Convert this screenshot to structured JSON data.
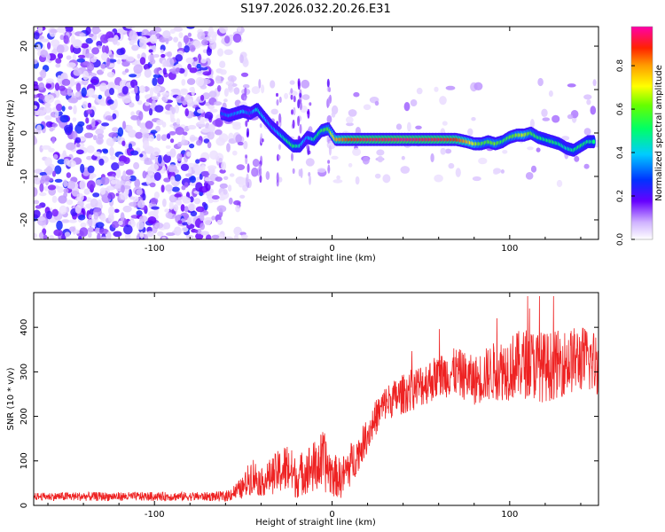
{
  "figure_title": "S197.2026.032.20.26.E31",
  "chart_data": [
    {
      "type": "heatmap",
      "title": "S197.2026.032.20.26.E31",
      "xlabel": "Height of straight line (km)",
      "ylabel": "Frequency (Hz)",
      "xlim": [
        -168,
        150
      ],
      "ylim": [
        -24.5,
        24.5
      ],
      "x_ticks": [
        -100,
        0,
        100
      ],
      "y_ticks": [
        -20,
        -10,
        0,
        10,
        20
      ],
      "x_tick_labels": [
        "-100",
        "0",
        "100"
      ],
      "y_tick_labels": [
        "-20",
        "-10",
        "0",
        "10",
        "20"
      ],
      "colorbar": {
        "label": "Normalized spectral amplitude",
        "range": [
          0,
          0.98
        ],
        "ticks": [
          0.0,
          0.2,
          0.4,
          0.6,
          0.8
        ],
        "tick_labels": [
          "0.0",
          "0.2",
          "0.4",
          "0.6",
          "0.8"
        ],
        "colormap": "rainbow"
      },
      "ridge": {
        "x": [
          -62,
          -58,
          -54,
          -50,
          -46,
          -42,
          -38,
          -34,
          -30,
          -26,
          -22,
          -18,
          -14,
          -10,
          -6,
          -2,
          2,
          10,
          20,
          30,
          40,
          50,
          60,
          70,
          76,
          80,
          84,
          88,
          92,
          96,
          100,
          104,
          108,
          112,
          116,
          120,
          124,
          128,
          132,
          136,
          140,
          144,
          148
        ],
        "y": [
          4.5,
          4,
          4.5,
          5,
          4.5,
          5.5,
          3.5,
          1.5,
          0,
          -1.5,
          -3,
          -3,
          -1,
          -1.5,
          0.5,
          1,
          -1.5,
          -1.5,
          -1.5,
          -1.5,
          -1.5,
          -1.5,
          -1.5,
          -1.5,
          -2,
          -2.5,
          -2.5,
          -2,
          -2.5,
          -2,
          -1,
          -0.5,
          -0.5,
          0,
          -1,
          -1.5,
          -2,
          -2.5,
          -3.5,
          -4,
          -3,
          -2,
          -2
        ],
        "amplitude": [
          0.3,
          0.35,
          0.35,
          0.4,
          0.3,
          0.45,
          0.4,
          0.35,
          0.4,
          0.5,
          0.55,
          0.45,
          0.35,
          0.5,
          0.55,
          0.6,
          0.8,
          0.9,
          0.95,
          0.95,
          0.98,
          0.95,
          0.95,
          0.9,
          0.8,
          0.7,
          0.6,
          0.6,
          0.65,
          0.55,
          0.6,
          0.65,
          0.7,
          0.6,
          0.55,
          0.5,
          0.55,
          0.5,
          0.45,
          0.5,
          0.55,
          0.5,
          0.5
        ]
      },
      "noise": {
        "description_values": "scattered low-amplitude speckle",
        "dense_region_x": [
          -168,
          -68
        ],
        "sparse_region_x": [
          -68,
          150
        ],
        "amplitude_range": [
          0.0,
          0.3
        ]
      }
    },
    {
      "type": "line",
      "xlabel": "Height of straight line (km)",
      "ylabel": "SNR (10 * v/v)",
      "xlim": [
        -168,
        150
      ],
      "ylim": [
        0,
        478
      ],
      "x_ticks": [
        -100,
        0,
        100
      ],
      "y_ticks": [
        0,
        100,
        200,
        300,
        400
      ],
      "x_tick_labels": [
        "-100",
        "0",
        "100"
      ],
      "y_tick_labels": [
        "0",
        "100",
        "200",
        "300",
        "400"
      ],
      "series": [
        {
          "name": "SNR",
          "color": "#ee2222",
          "x": [
            -168,
            -150,
            -130,
            -110,
            -90,
            -70,
            -60,
            -50,
            -45,
            -40,
            -35,
            -30,
            -25,
            -20,
            -15,
            -10,
            -5,
            0,
            5,
            10,
            15,
            20,
            25,
            30,
            40,
            50,
            60,
            70,
            80,
            90,
            100,
            110,
            120,
            130,
            140,
            150
          ],
          "y": [
            20,
            20,
            20,
            20,
            20,
            20,
            20,
            40,
            70,
            50,
            65,
            75,
            85,
            60,
            80,
            85,
            100,
            70,
            60,
            90,
            120,
            160,
            200,
            230,
            250,
            270,
            290,
            300,
            280,
            300,
            310,
            320,
            310,
            320,
            330,
            320
          ],
          "noise_amplitude": [
            8,
            10,
            10,
            10,
            10,
            10,
            12,
            25,
            45,
            30,
            40,
            50,
            60,
            45,
            55,
            60,
            70,
            50,
            45,
            50,
            40,
            40,
            40,
            40,
            45,
            50,
            50,
            55,
            55,
            65,
            75,
            80,
            80,
            75,
            75,
            75
          ],
          "max_peak": 470
        }
      ]
    }
  ]
}
